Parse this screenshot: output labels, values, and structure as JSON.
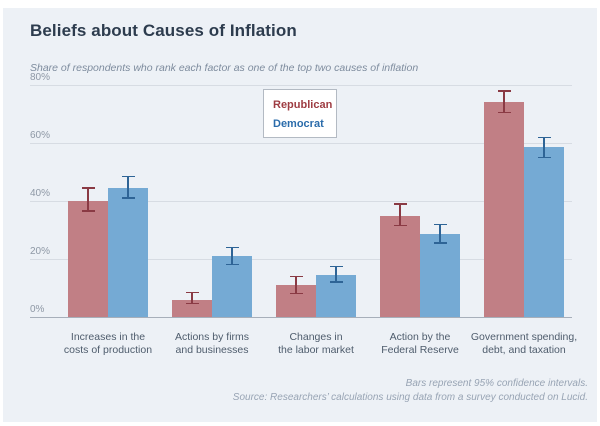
{
  "header": {
    "title": "Beliefs about Causes of Inflation",
    "subtitle": "Share of respondents who rank each factor as one of the top two causes of inflation"
  },
  "notes": {
    "line1": "Bars represent 95% confidence intervals.",
    "line2": "Source: Researchers’ calculations using data from a survey conducted on Lucid."
  },
  "colors": {
    "panel_background": "#edf1f6",
    "republican_bar": "#c17f85",
    "republican_error": "#8a3a44",
    "democrat_bar": "#75aad4",
    "democrat_error": "#2e6496",
    "gridline": "#d7dce3"
  },
  "chart_data": {
    "type": "bar",
    "title": "Beliefs about Causes of Inflation",
    "subtitle": "Share of respondents who rank each factor as one of the top two causes of inflation",
    "categories": [
      [
        "Increases in the",
        "costs of production"
      ],
      [
        "Actions by firms",
        "and businesses"
      ],
      [
        "Changes in",
        "the labor market"
      ],
      [
        "Action by the",
        "Federal Reserve"
      ],
      [
        "Government spending,",
        "debt, and taxation"
      ]
    ],
    "series": [
      {
        "name": "Republican",
        "color": "#c17f85",
        "error_color": "#8a3a44",
        "values": [
          40,
          6,
          11,
          35,
          74
        ],
        "ci_low": [
          36.5,
          4.5,
          8,
          31.5,
          70.5
        ],
        "ci_high": [
          44.5,
          8.5,
          14,
          39,
          78
        ]
      },
      {
        "name": "Democrat",
        "color": "#75aad4",
        "error_color": "#2e6496",
        "values": [
          44.5,
          21,
          14.5,
          28.5,
          58.5
        ],
        "ci_low": [
          41,
          18,
          12,
          25.5,
          55
        ],
        "ci_high": [
          48.5,
          24,
          17.5,
          32,
          62
        ]
      }
    ],
    "ylabel": "",
    "xlabel": "",
    "ylim": [
      0,
      80
    ],
    "yticks": [
      0,
      20,
      40,
      60,
      80
    ],
    "ytick_suffix": "%",
    "grid": true,
    "legend_position": "top-center",
    "error_bars": "95% confidence intervals"
  }
}
